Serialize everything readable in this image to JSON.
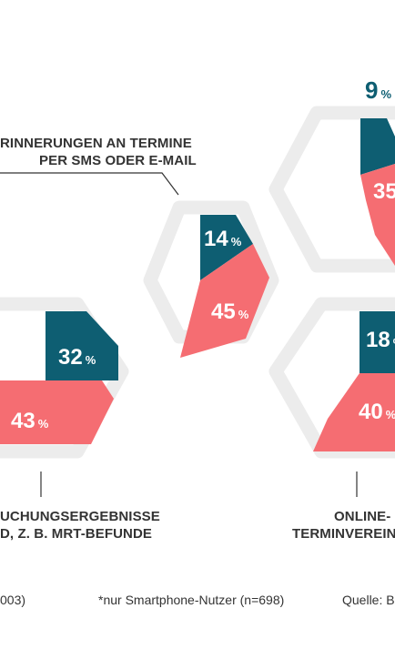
{
  "colors": {
    "teal": "#0e5e72",
    "coral": "#f56d72",
    "hex_outline": "#ececec",
    "text": "#333333"
  },
  "chart_data": {
    "type": "pie",
    "charts": [
      {
        "label_lines": [
          "RINNERUNGEN AN TERMINE",
          "PER SMS ODER E-MAIL"
        ],
        "values": [
          {
            "value": 14,
            "color": "teal"
          },
          {
            "value": 45,
            "color": "coral"
          }
        ]
      },
      {
        "label_lines": [
          "UCHUNGSERGEBNISSE",
          "D, Z. B. MRT-BEFUNDE"
        ],
        "values": [
          {
            "value": 32,
            "color": "teal"
          },
          {
            "value": 43,
            "color": "coral"
          }
        ]
      },
      {
        "label_lines": [
          "ONLINE-",
          "TERMINVEREINBA"
        ],
        "values": [
          {
            "value": 18,
            "color": "teal"
          },
          {
            "value": 40,
            "color": "coral"
          }
        ]
      },
      {
        "label_lines": [],
        "values": [
          {
            "value": 9,
            "color": "teal"
          },
          {
            "value": 35,
            "color": "coral"
          }
        ]
      }
    ],
    "unit": "%"
  },
  "footer": {
    "left": "003)",
    "middle": "*nur Smartphone-Nutzer (n=698)",
    "right": "Quelle: B"
  }
}
